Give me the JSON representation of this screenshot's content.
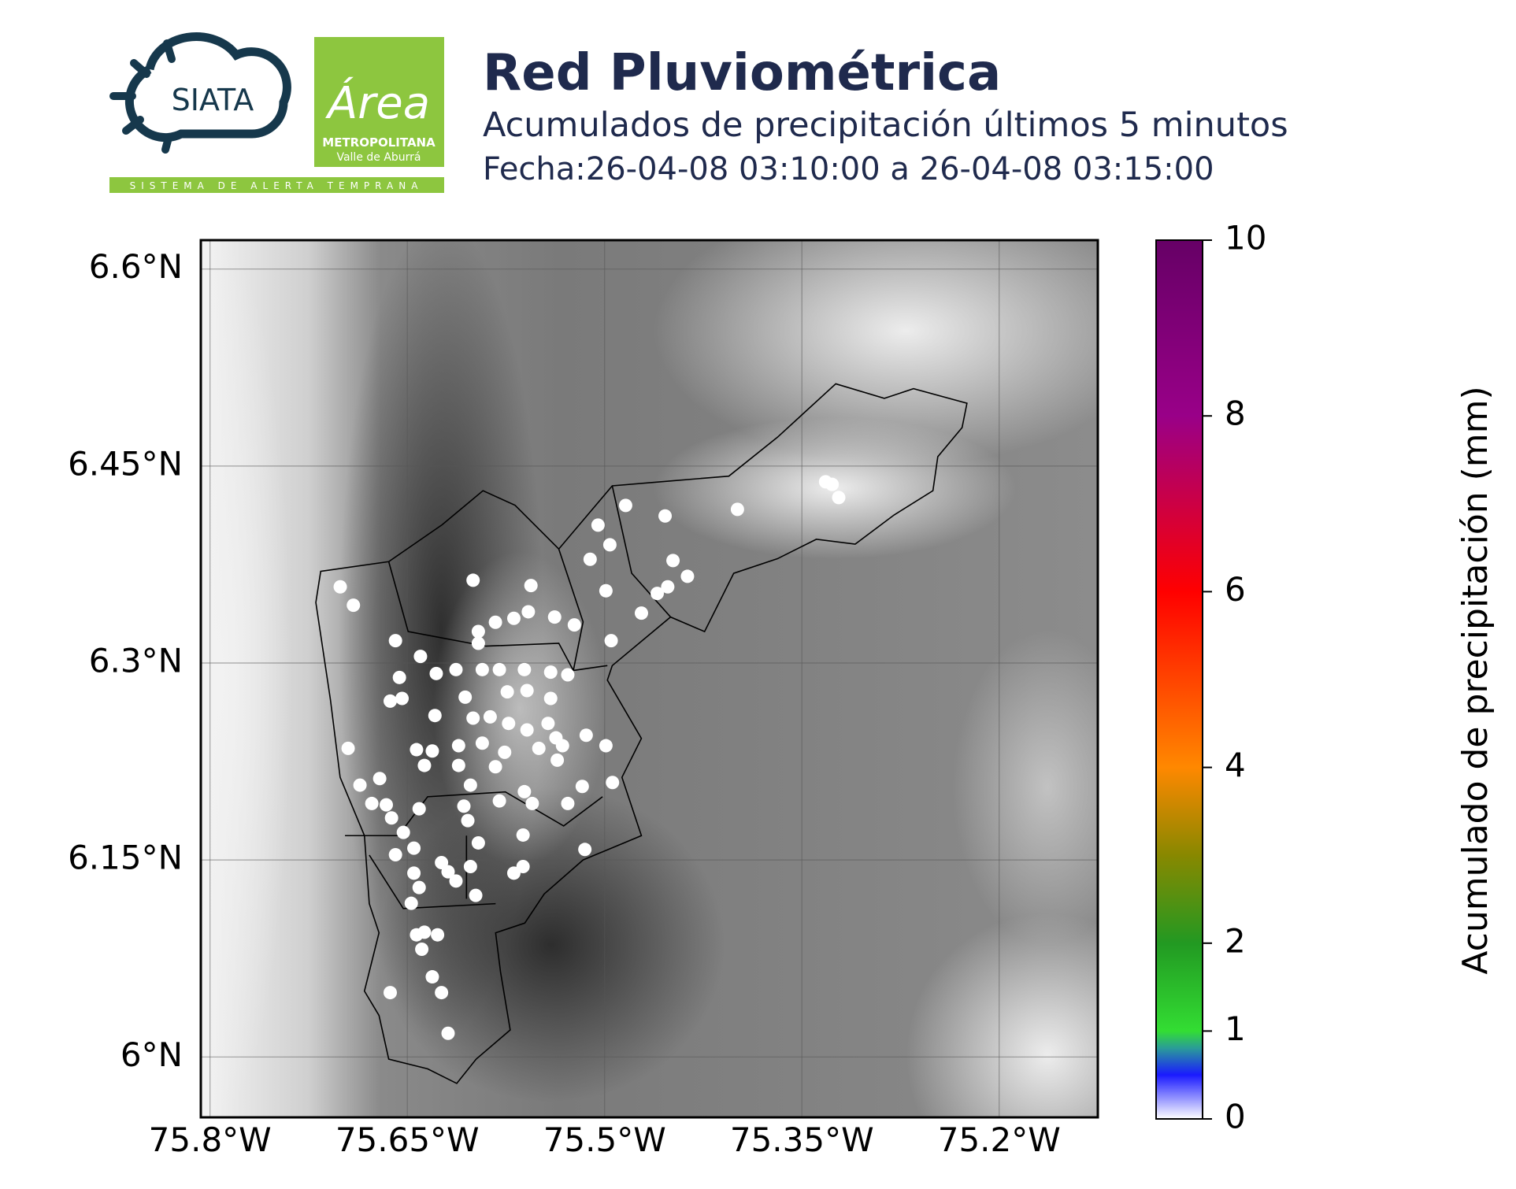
{
  "header": {
    "logo_siata": "SIATA",
    "logo_area": "Área",
    "logo_metro": "METROPOLITANA",
    "logo_valle": "Valle de Aburrá",
    "logo_strip": "SISTEMA DE ALERTA TEMPRANA"
  },
  "chart_data": {
    "type": "map",
    "title": "Red Pluviométrica",
    "subtitle": "Acumulados de precipitación últimos 5 minutos",
    "date": "Fecha:26-04-08 03:10:00 a 26-04-08 03:15:00",
    "xlim": [
      -75.807,
      -75.125
    ],
    "ylim": [
      5.954,
      6.622
    ],
    "xticks": [
      {
        "value": -75.8,
        "label": "75.8°W"
      },
      {
        "value": -75.65,
        "label": "75.65°W"
      },
      {
        "value": -75.5,
        "label": "75.5°W"
      },
      {
        "value": -75.35,
        "label": "75.35°W"
      },
      {
        "value": -75.2,
        "label": "75.2°W"
      }
    ],
    "yticks": [
      {
        "value": 6.6,
        "label": "6.6°N"
      },
      {
        "value": 6.45,
        "label": "6.45°N"
      },
      {
        "value": 6.3,
        "label": "6.3°N"
      },
      {
        "value": 6.15,
        "label": "6.15°N"
      },
      {
        "value": 6.0,
        "label": "6°N"
      }
    ],
    "grid": true,
    "colorbar": {
      "label": "Acumulado de precipitación (mm)",
      "lim": [
        0,
        10
      ],
      "ticks": [
        0,
        1,
        2,
        4,
        6,
        8,
        10
      ],
      "colormap": [
        {
          "value": 0,
          "color": "#ffffff"
        },
        {
          "value": 0.5,
          "color": "#1a1aff"
        },
        {
          "value": 0.8,
          "color": "#2a9a9a"
        },
        {
          "value": 1,
          "color": "#33dd33"
        },
        {
          "value": 2,
          "color": "#229922"
        },
        {
          "value": 3,
          "color": "#888800"
        },
        {
          "value": 4,
          "color": "#ff8800"
        },
        {
          "value": 6,
          "color": "#ff0000"
        },
        {
          "value": 7,
          "color": "#cc0044"
        },
        {
          "value": 8,
          "color": "#990088"
        },
        {
          "value": 10,
          "color": "#660066"
        }
      ]
    },
    "stations": {
      "lon": [
        -75.701,
        -75.691,
        -75.6,
        -75.556,
        -75.511,
        -75.505,
        -75.496,
        -75.484,
        -75.454,
        -75.399,
        -75.332,
        -75.327,
        -75.322,
        -75.448,
        -75.437,
        -75.452,
        -75.46,
        -75.472,
        -75.499,
        -75.495,
        -75.523,
        -75.538,
        -75.558,
        -75.569,
        -75.583,
        -75.596,
        -75.596,
        -75.659,
        -75.64,
        -75.613,
        -75.628,
        -75.593,
        -75.58,
        -75.561,
        -75.541,
        -75.528,
        -75.656,
        -75.654,
        -75.663,
        -75.606,
        -75.574,
        -75.559,
        -75.541,
        -75.629,
        -75.6,
        -75.587,
        -75.573,
        -75.559,
        -75.543,
        -75.537,
        -75.514,
        -75.499,
        -75.695,
        -75.643,
        -75.631,
        -75.611,
        -75.593,
        -75.576,
        -75.55,
        -75.532,
        -75.637,
        -75.611,
        -75.583,
        -75.536,
        -75.671,
        -75.686,
        -75.602,
        -75.561,
        -75.517,
        -75.494,
        -75.677,
        -75.666,
        -75.641,
        -75.607,
        -75.58,
        -75.555,
        -75.528,
        -75.662,
        -75.604,
        -75.653,
        -75.562,
        -75.596,
        -75.645,
        -75.659,
        -75.515,
        -75.624,
        -75.602,
        -75.562,
        -75.645,
        -75.619,
        -75.569,
        -75.641,
        -75.613,
        -75.598,
        -75.647,
        -75.637,
        -75.643,
        -75.627,
        -75.639,
        -75.631,
        -75.663,
        -75.624,
        -75.619
      ],
      "lat": [
        6.358,
        6.344,
        6.363,
        6.359,
        6.379,
        6.405,
        6.39,
        6.42,
        6.412,
        6.417,
        6.438,
        6.436,
        6.426,
        6.378,
        6.366,
        6.358,
        6.353,
        6.338,
        6.355,
        6.317,
        6.329,
        6.335,
        6.339,
        6.334,
        6.331,
        6.324,
        6.315,
        6.317,
        6.305,
        6.295,
        6.292,
        6.295,
        6.295,
        6.295,
        6.293,
        6.291,
        6.289,
        6.273,
        6.271,
        6.274,
        6.278,
        6.279,
        6.273,
        6.26,
        6.258,
        6.259,
        6.254,
        6.249,
        6.254,
        6.243,
        6.245,
        6.237,
        6.235,
        6.234,
        6.233,
        6.237,
        6.239,
        6.232,
        6.235,
        6.237,
        6.222,
        6.222,
        6.221,
        6.226,
        6.212,
        6.207,
        6.207,
        6.202,
        6.206,
        6.209,
        6.193,
        6.192,
        6.189,
        6.191,
        6.195,
        6.193,
        6.193,
        6.182,
        6.18,
        6.171,
        6.169,
        6.163,
        6.159,
        6.154,
        6.158,
        6.148,
        6.145,
        6.145,
        6.14,
        6.141,
        6.14,
        6.129,
        6.134,
        6.123,
        6.117,
        6.095,
        6.093,
        6.093,
        6.082,
        6.061,
        6.049,
        6.049,
        6.018
      ],
      "values": [
        0,
        0,
        0,
        0,
        0,
        0,
        0,
        0,
        0,
        0,
        0,
        0,
        0,
        0,
        0,
        0,
        0,
        0,
        0,
        0,
        0,
        0,
        0,
        0,
        0,
        0,
        0,
        0,
        0,
        0,
        0,
        0,
        0,
        0,
        0,
        0,
        0,
        0,
        0,
        0,
        0,
        0,
        0,
        0,
        0,
        0,
        0,
        0,
        0,
        0,
        0,
        0,
        0,
        0,
        0,
        0,
        0,
        0,
        0,
        0,
        0,
        0,
        0,
        0,
        0,
        0,
        0,
        0,
        0,
        0,
        0,
        0,
        0,
        0,
        0,
        0,
        0,
        0,
        0,
        0,
        0,
        0,
        0,
        0,
        0,
        0,
        0,
        0,
        0,
        0,
        0,
        0,
        0,
        0,
        0,
        0,
        0,
        0,
        0,
        0,
        0,
        0,
        0
      ]
    }
  }
}
